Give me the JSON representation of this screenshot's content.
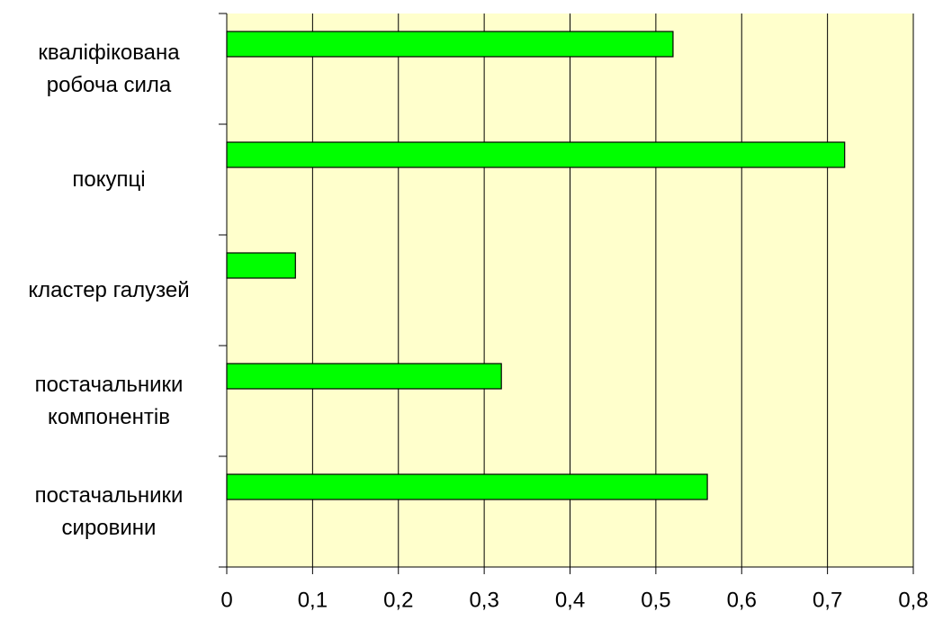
{
  "chart_data": {
    "type": "barh",
    "categories": [
      "кваліфікована робоча сила",
      "покупці",
      "кластер галузей",
      "постачальники компонентів",
      "постачальники сировини"
    ],
    "values": [
      0.52,
      0.72,
      0.08,
      0.32,
      0.56
    ],
    "color": "#00ff00",
    "background": "#ffffcc",
    "xlim": [
      0,
      0.8
    ],
    "xticks": [
      0,
      {
        "value": 0.1,
        "label": "0,1"
      },
      {
        "value": 0.2,
        "label": "0,2"
      },
      {
        "value": 0.3,
        "label": "0,3"
      },
      {
        "value": 0.4,
        "label": "0,4"
      },
      {
        "value": 0.5,
        "label": "0,5"
      },
      {
        "value": 0.6,
        "label": "0,6"
      },
      {
        "value": 0.7,
        "label": "0,7"
      },
      {
        "value": 0.8,
        "label": "0,8"
      }
    ],
    "grid": true
  }
}
